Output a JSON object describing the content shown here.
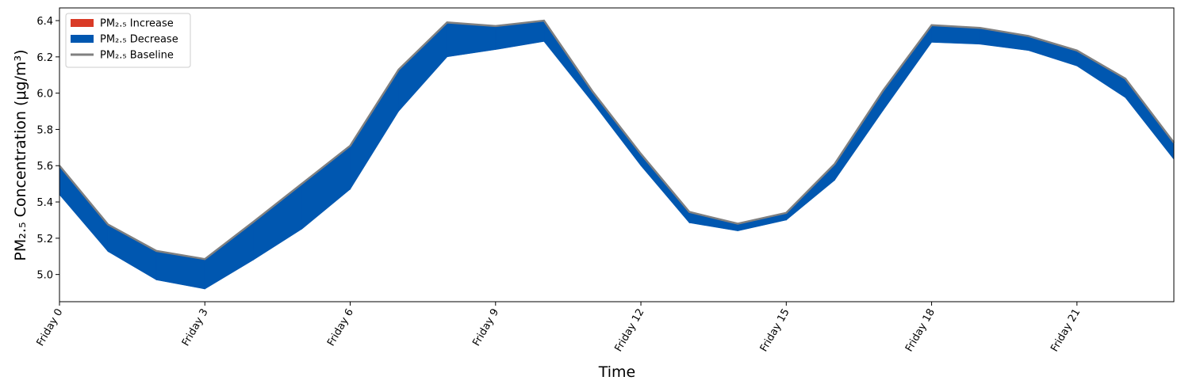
{
  "chart_data": {
    "type": "difference_area",
    "x_label": "Time",
    "y_label": "PM₂.₅ Concentration (μg/m³)",
    "x": [
      0,
      1,
      2,
      3,
      4,
      5,
      6,
      7,
      8,
      9,
      10,
      11,
      12,
      13,
      14,
      15,
      16,
      17,
      18,
      19,
      20,
      21,
      22,
      23
    ],
    "baseline": {
      "name": "PM₂.₅ Baseline",
      "color": "#808080",
      "values": [
        5.6,
        5.276,
        5.13,
        5.085,
        5.29,
        5.5,
        5.71,
        6.13,
        6.39,
        6.37,
        6.4,
        6.01,
        5.665,
        5.345,
        5.28,
        5.34,
        5.61,
        6.015,
        6.375,
        6.36,
        6.315,
        6.235,
        6.08,
        5.727
      ]
    },
    "scenario_values": [
      5.44,
      5.127,
      4.97,
      4.92,
      5.08,
      5.25,
      5.47,
      5.9,
      6.2,
      6.24,
      6.285,
      5.95,
      5.6,
      5.285,
      5.24,
      5.3,
      5.52,
      5.905,
      6.28,
      6.27,
      6.235,
      6.15,
      5.975,
      5.635
    ],
    "fills": [
      {
        "name": "PM₂.₅ Increase",
        "color": "#d93a26"
      },
      {
        "name": "PM₂.₅ Decrease",
        "color": "#0057b0"
      }
    ],
    "xlim": [
      0,
      23
    ],
    "ylim": [
      4.85,
      6.47
    ],
    "xticks": [
      {
        "value": 0,
        "label": "Friday 0"
      },
      {
        "value": 3,
        "label": "Friday 3"
      },
      {
        "value": 6,
        "label": "Friday 6"
      },
      {
        "value": 9,
        "label": "Friday 9"
      },
      {
        "value": 12,
        "label": "Friday 12"
      },
      {
        "value": 15,
        "label": "Friday 15"
      },
      {
        "value": 18,
        "label": "Friday 18"
      },
      {
        "value": 21,
        "label": "Friday 21"
      }
    ],
    "yticks": [
      {
        "value": 5,
        "label": "5.0"
      },
      {
        "value": 5.2,
        "label": "5.2"
      },
      {
        "value": 5.4,
        "label": "5.4"
      },
      {
        "value": 5.6,
        "label": "5.6"
      },
      {
        "value": 5.8,
        "label": "5.8"
      },
      {
        "value": 6,
        "label": "6.0"
      },
      {
        "value": 6.2,
        "label": "6.2"
      },
      {
        "value": 6.4,
        "label": "6.4"
      }
    ],
    "legend": "upper left"
  }
}
